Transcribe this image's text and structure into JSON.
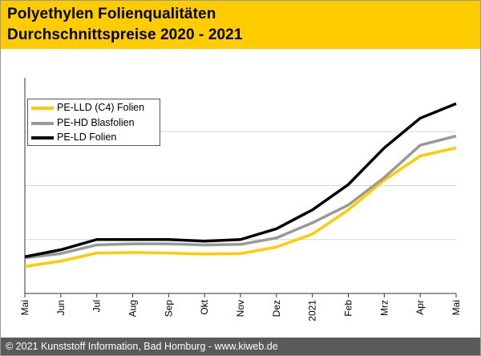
{
  "header": {
    "line1": "Polyethylen Folienqualitäten",
    "line2": "Durchschnittspreise 2020 - 2021",
    "background": "#ffcc00"
  },
  "footer": {
    "text": "© 2021 Kunststoff Information, Bad Homburg - www.kiweb.de",
    "background": "#5a5a5a"
  },
  "chart_data": {
    "type": "line",
    "title": "Polyethylen Folienqualitäten Durchschnittspreise 2020 - 2021",
    "xlabel": "",
    "ylabel": "",
    "categories": [
      "Mai",
      "Jun",
      "Jul",
      "Aug",
      "Sep",
      "Okt",
      "Nov",
      "Dez",
      "2021",
      "Feb",
      "Mrz",
      "Apr",
      "Mai"
    ],
    "ylim": [
      0,
      4
    ],
    "gridlines_y": [
      1,
      2,
      3
    ],
    "legend_position": "top-left",
    "series": [
      {
        "name": "PE-LLD (C4) Folien",
        "color": "#ffcc00",
        "values": [
          0.5,
          0.6,
          0.75,
          0.76,
          0.75,
          0.73,
          0.74,
          0.86,
          1.1,
          1.55,
          2.1,
          2.55,
          2.7
        ]
      },
      {
        "name": "PE-HD Blasfolien",
        "color": "#999999",
        "values": [
          0.66,
          0.74,
          0.9,
          0.92,
          0.92,
          0.9,
          0.91,
          1.03,
          1.31,
          1.64,
          2.15,
          2.75,
          2.92
        ]
      },
      {
        "name": "PE-LD Folien",
        "color": "#000000",
        "values": [
          0.68,
          0.81,
          1.0,
          1.0,
          1.0,
          0.97,
          1.0,
          1.2,
          1.55,
          2.02,
          2.7,
          3.25,
          3.52
        ]
      }
    ]
  }
}
